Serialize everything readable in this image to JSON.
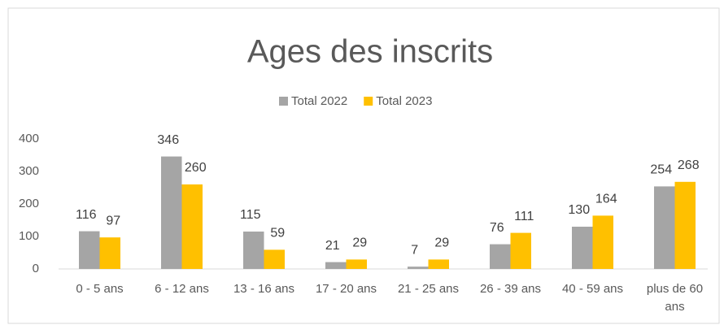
{
  "chart_data": {
    "type": "bar",
    "title": "Ages des inscrits",
    "categories": [
      "0 - 5 ans",
      "6 - 12 ans",
      "13 - 16 ans",
      "17 - 20 ans",
      "21 - 25 ans",
      "26 - 39 ans",
      "40 - 59 ans",
      "plus de 60 ans"
    ],
    "series": [
      {
        "name": "Total 2022",
        "color": "#a5a5a5",
        "values": [
          116,
          346,
          115,
          21,
          7,
          76,
          130,
          254
        ]
      },
      {
        "name": "Total 2023",
        "color": "#ffc000",
        "values": [
          97,
          260,
          59,
          29,
          29,
          111,
          164,
          268
        ]
      }
    ],
    "ylim": [
      0,
      400
    ],
    "yticks": [
      0,
      100,
      200,
      300,
      400
    ],
    "grid": false,
    "legend": "top"
  }
}
